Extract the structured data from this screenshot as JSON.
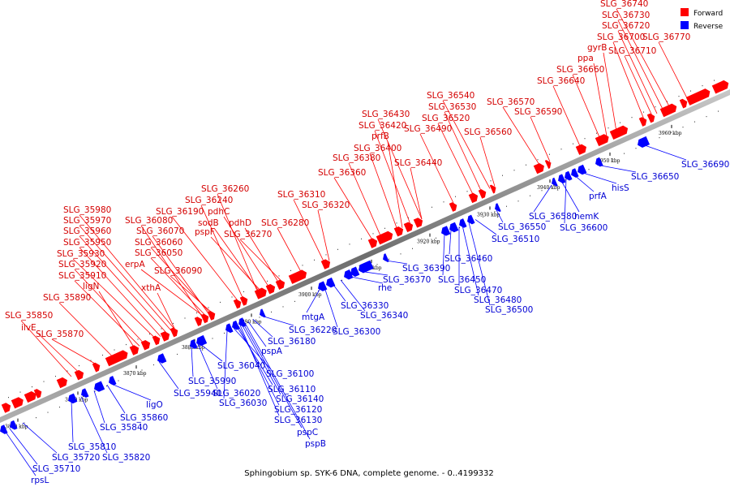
{
  "caption": "Sphingobium sp. SYK-6 DNA, complete genome. - 0..4199332",
  "legend": {
    "forward_label": "Forward",
    "forward_color": "#ff0000",
    "reverse_label": "Reverse",
    "reverse_color": "#0000ff"
  },
  "ticks": [
    "3850 kbp",
    "3860 kbp",
    "3870 kbp",
    "3880 kbp",
    "3890 kbp",
    "3900 kbp",
    "3910 kbp",
    "3920 kbp",
    "3930 kbp",
    "3940 kbp",
    "3950 kbp",
    "3960 kbp"
  ],
  "forward_labels": [
    "SLG_35850",
    "ilvE",
    "SLG_35870",
    "SLG_35890",
    "ligN",
    "SLG_35910",
    "SLG_35920",
    "SLG_35930",
    "SLG_35950",
    "SLG_35960",
    "SLG_35970",
    "SLG_35980",
    "SLG_36050",
    "SLG_36060",
    "SLG_36070",
    "SLG_36080",
    "erpA",
    "xthA",
    "SLG_36090",
    "SLG_36190",
    "SLG_36240",
    "SLG_36260",
    "sodB",
    "pspF",
    "pdhC",
    "pdhD",
    "SLG_36270",
    "SLG_36280",
    "SLG_36310",
    "SLG_36320",
    "SLG_36360",
    "SLG_36380",
    "SLG_36400",
    "prfB",
    "SLG_36420",
    "SLG_36430",
    "SLG_36440",
    "SLG_36490",
    "SLG_36520",
    "SLG_36530",
    "SLG_36540",
    "SLG_36560",
    "SLG_36570",
    "SLG_36590",
    "SLG_36640",
    "SLG_36660",
    "ppa",
    "gyrB",
    "SLG_36700",
    "SLG_36710",
    "SLG_36720",
    "SLG_36730",
    "SLG_36740",
    "SLG_36770"
  ],
  "reverse_labels": [
    "rpsL",
    "SLG_35710",
    "SLG_35720",
    "SLG_35810",
    "SLG_35820",
    "SLG_35840",
    "SLG_35860",
    "ligO",
    "SLG_35940",
    "SLG_35990",
    "SLG_36020",
    "SLG_36030",
    "SLG_36040",
    "SLG_36100",
    "SLG_36110",
    "SLG_36120",
    "SLG_36130",
    "SLG_36140",
    "pspC",
    "pspB",
    "pspA",
    "SLG_36180",
    "SLG_36220",
    "mtgA",
    "SLG_36300",
    "SLG_36330",
    "SLG_36340",
    "rhe",
    "SLG_36370",
    "SLG_36390",
    "SLG_36450",
    "SLG_36460",
    "SLG_36470",
    "SLG_36480",
    "SLG_36500",
    "SLG_36510",
    "SLG_36550",
    "SLG_36580",
    "hemK",
    "SLG_36600",
    "prfA",
    "hisS",
    "SLG_36650",
    "SLG_36690"
  ]
}
